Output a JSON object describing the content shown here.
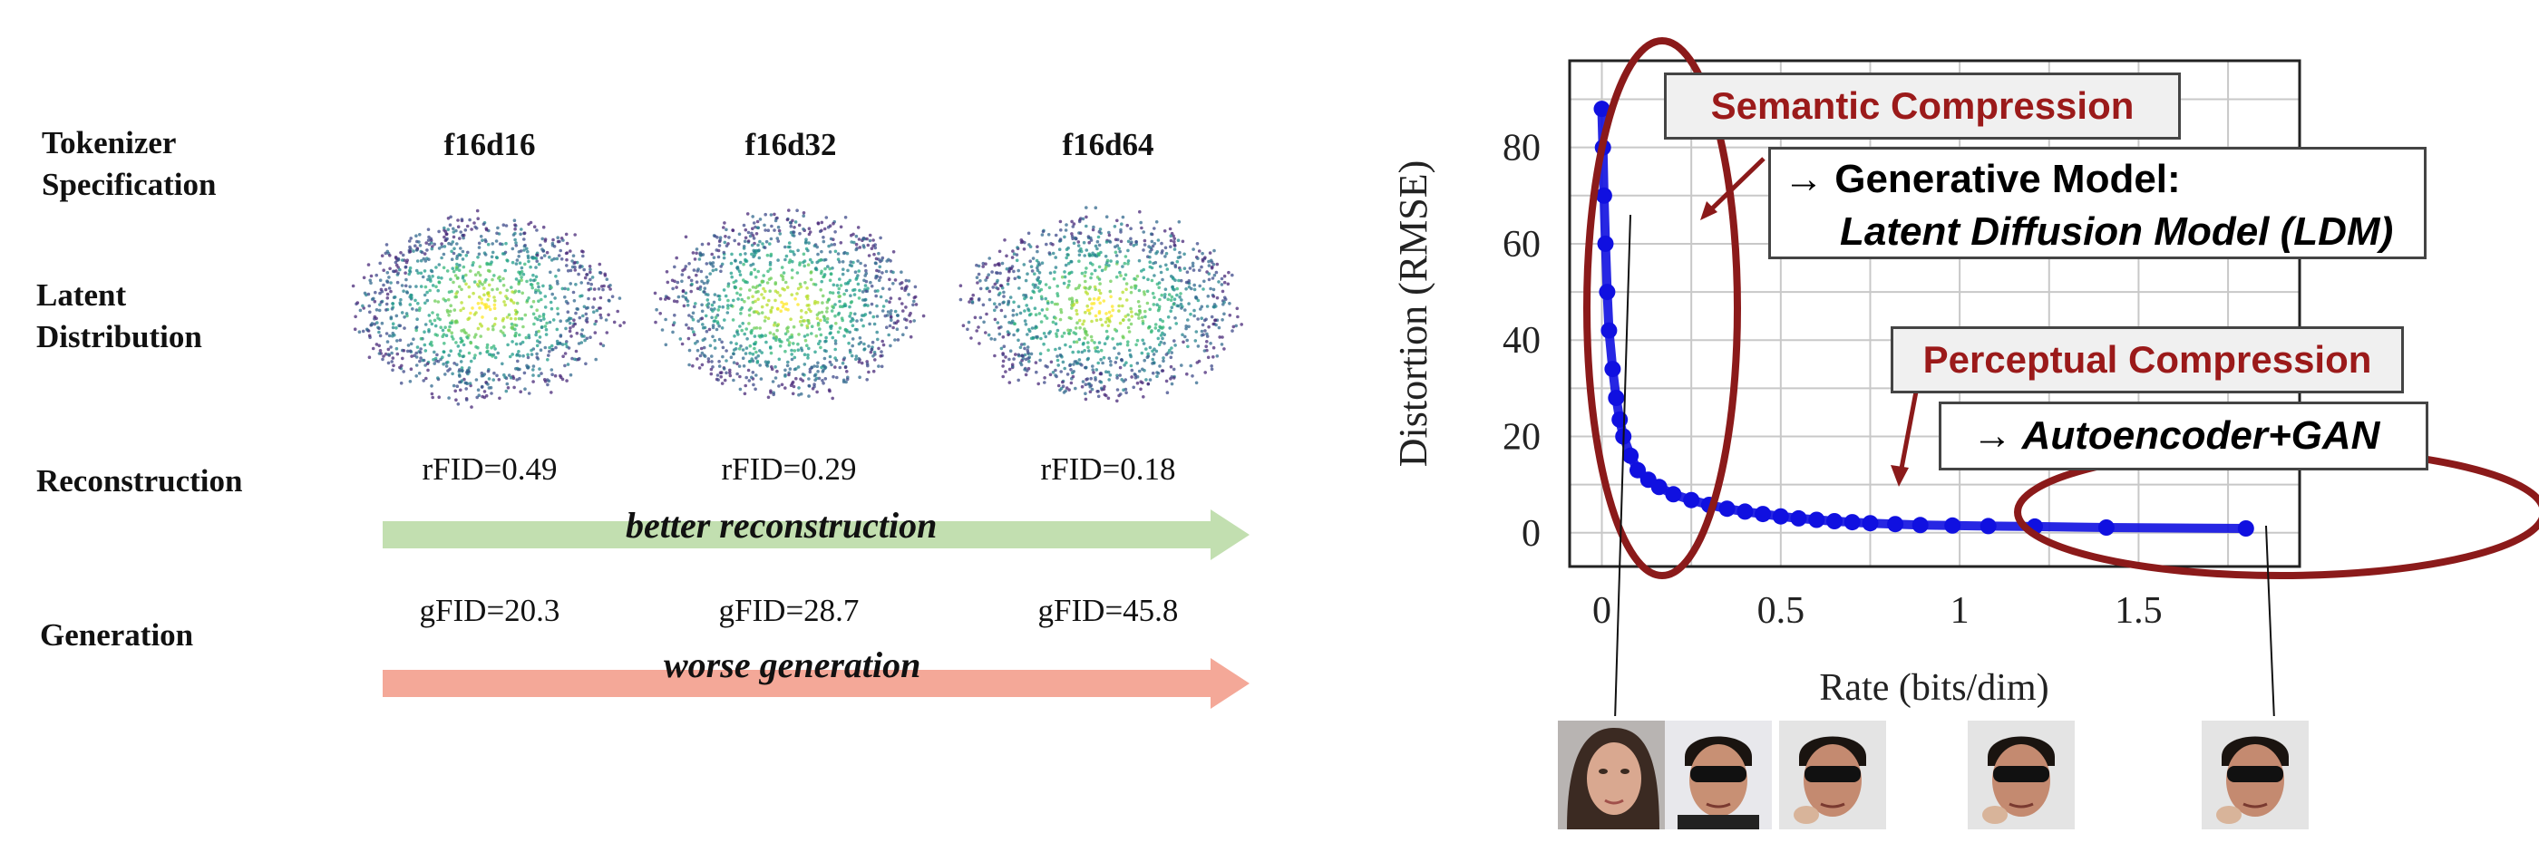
{
  "left_panel": {
    "row_labels": {
      "tokenizer": [
        "Tokenizer",
        "Specification"
      ],
      "latent": [
        "Latent",
        "Distribution"
      ],
      "reconstruction": "Reconstruction",
      "generation": "Generation"
    },
    "columns": [
      {
        "spec": "f16d16",
        "rfid": "rFID=0.49",
        "gfid": "gFID=20.3"
      },
      {
        "spec": "f16d32",
        "rfid": "rFID=0.29",
        "gfid": "gFID=28.7"
      },
      {
        "spec": "f16d64",
        "rfid": "rFID=0.18",
        "gfid": "gFID=45.8"
      }
    ],
    "arrows": {
      "reconstruction": {
        "label": "better reconstruction",
        "color": "#c2dfb0"
      },
      "generation": {
        "label": "worse generation",
        "color": "#f4a898"
      }
    },
    "scatter_colors": [
      "#fde725",
      "#b5de2b",
      "#6ece58",
      "#35b779",
      "#1f9e89",
      "#26828e",
      "#31688e",
      "#3e4989",
      "#482878"
    ]
  },
  "chart_data": {
    "type": "scatter",
    "xlabel": "Rate (bits/dim)",
    "ylabel": "Distortion (RMSE)",
    "x_ticks": [
      "0",
      "0.5",
      "1",
      "1.5"
    ],
    "y_ticks": [
      "0",
      "20",
      "40",
      "60",
      "80"
    ],
    "xlim": [
      -0.09,
      1.95
    ],
    "ylim": [
      -7,
      98
    ],
    "grid": true,
    "series": [
      {
        "color": "#1010e0",
        "points": [
          [
            0.0,
            88
          ],
          [
            0.003,
            80
          ],
          [
            0.006,
            70
          ],
          [
            0.01,
            60
          ],
          [
            0.015,
            50
          ],
          [
            0.02,
            42
          ],
          [
            0.03,
            34
          ],
          [
            0.04,
            28
          ],
          [
            0.05,
            23.5
          ],
          [
            0.06,
            20
          ],
          [
            0.08,
            16
          ],
          [
            0.1,
            13
          ],
          [
            0.13,
            11
          ],
          [
            0.16,
            9.5
          ],
          [
            0.2,
            8
          ],
          [
            0.25,
            6.8
          ],
          [
            0.3,
            5.8
          ],
          [
            0.35,
            5
          ],
          [
            0.4,
            4.4
          ],
          [
            0.45,
            3.9
          ],
          [
            0.5,
            3.4
          ],
          [
            0.55,
            3.0
          ],
          [
            0.6,
            2.7
          ],
          [
            0.65,
            2.4
          ],
          [
            0.7,
            2.2
          ],
          [
            0.75,
            2.0
          ],
          [
            0.82,
            1.8
          ],
          [
            0.89,
            1.6
          ],
          [
            0.98,
            1.5
          ],
          [
            1.08,
            1.4
          ],
          [
            1.21,
            1.3
          ],
          [
            1.41,
            1.1
          ],
          [
            1.8,
            0.9
          ]
        ]
      }
    ],
    "annotations": {
      "semantic": "Semantic Compression",
      "generative_arrow": "→",
      "generative_title": "Generative Model:",
      "generative_model": "Latent Diffusion Model (LDM)",
      "perceptual": "Perceptual Compression",
      "autoencoder_arrow": "→",
      "autoencoder": "Autoencoder+GAN"
    },
    "colors": {
      "ellipse": "#8b1a1a",
      "callout_text": "#9b1a1a",
      "point": "#1010e0"
    }
  }
}
